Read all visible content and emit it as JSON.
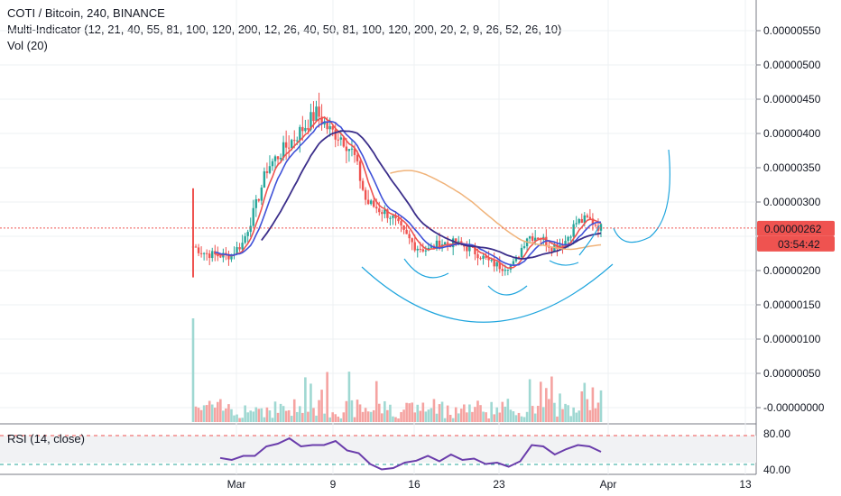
{
  "header": {
    "symbol_line": "COTI / Bitcoin, 240, BINANCE",
    "indicator_line": "Multi-Indicator (12, 21, 40, 55, 81, 100, 120, 200, 12, 26, 40, 50, 81, 100, 120, 200, 20, 2, 9, 26, 52, 26, 10)",
    "volume_line": "Vol (20)"
  },
  "price_axis": {
    "ticks": [
      "0.00000550",
      "0.00000500",
      "0.00000450",
      "0.00000400",
      "0.00000350",
      "0.00000300",
      "0.00000200",
      "0.00000150",
      "0.00000100",
      "0.00000050",
      "-0.00000000"
    ],
    "current_price": "0.00000262",
    "countdown": "03:54:42",
    "current_price_color": "#ef5350"
  },
  "rsi": {
    "title": "RSI (14, close)",
    "ticks": [
      "80.00",
      "40.00"
    ],
    "color": "#6a3dab"
  },
  "time_axis": {
    "ticks": [
      "Mar",
      "9",
      "16",
      "23",
      "Apr",
      "13"
    ]
  },
  "colors": {
    "up": "#26a69a",
    "down": "#ef5350",
    "ma_fast": "#ef5350",
    "ma_mid": "#3f51d8",
    "ma_slow": "#3b2e8a",
    "ma_200": "#f0b37a",
    "annotation": "#21a6de"
  },
  "chart_data": {
    "type": "candlestick",
    "title": "COTI / Bitcoin, 240, BINANCE",
    "x": [
      "Feb 26",
      "Feb 27",
      "Feb 28",
      "Mar 1",
      "Mar 2",
      "Mar 3",
      "Mar 4",
      "Mar 5",
      "Mar 6",
      "Mar 7",
      "Mar 8",
      "Mar 9",
      "Mar 10",
      "Mar 11",
      "Mar 12",
      "Mar 13",
      "Mar 14",
      "Mar 15",
      "Mar 16",
      "Mar 17",
      "Mar 18",
      "Mar 19",
      "Mar 20",
      "Mar 21",
      "Mar 22",
      "Mar 23",
      "Mar 24",
      "Mar 25",
      "Mar 26",
      "Mar 27",
      "Mar 28",
      "Mar 29",
      "Mar 30",
      "Mar 31"
    ],
    "close": [
      2.35e-06,
      2.25e-06,
      2.22e-06,
      2.22e-06,
      2.4e-06,
      2.9e-06,
      3.5e-06,
      3.7e-06,
      3.9e-06,
      4.1e-06,
      4.3e-06,
      4.05e-06,
      3.95e-06,
      3.7e-06,
      3e-06,
      2.9e-06,
      2.8e-06,
      2.55e-06,
      2.35e-06,
      2.3e-06,
      2.4e-06,
      2.4e-06,
      2.35e-06,
      2.25e-06,
      2.12e-06,
      2.05e-06,
      2.1e-06,
      2.5e-06,
      2.5e-06,
      2.35e-06,
      2.4e-06,
      2.7e-06,
      2.75e-06,
      2.62e-06
    ],
    "rsi": [
      45,
      46,
      48,
      52,
      62,
      70,
      74,
      66,
      64,
      68,
      70,
      60,
      52,
      40,
      28,
      34,
      38,
      45,
      48,
      44,
      50,
      46,
      44,
      40,
      38,
      36,
      40,
      68,
      62,
      54,
      58,
      68,
      62,
      58
    ],
    "ylim": [
      0,
      5.8e-06
    ],
    "rsi_ylim": [
      20,
      90
    ]
  }
}
